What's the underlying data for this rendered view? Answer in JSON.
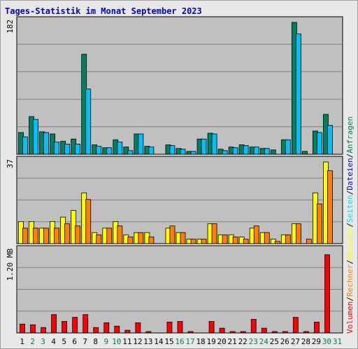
{
  "title": "Tages-Statistik im Monat September 2023",
  "colors": {
    "panel_bg": "#c0c0c0",
    "grid": "#808080",
    "anfragen": "#008060",
    "dateien": "#00c0ff",
    "seiten": "#00e0ff",
    "besuche": "#ffff00",
    "rechner": "#ff8000",
    "volumen": "#ff0000",
    "weekday": "#000000",
    "weekend": "#00805c"
  },
  "chart_data": {
    "type": "bar",
    "categories": [
      "1",
      "2",
      "3",
      "4",
      "5",
      "6",
      "7",
      "8",
      "9",
      "10",
      "11",
      "12",
      "13",
      "14",
      "15",
      "16",
      "17",
      "18",
      "19",
      "20",
      "21",
      "22",
      "23",
      "24",
      "25",
      "26",
      "27",
      "28",
      "29",
      "30",
      "31"
    ],
    "weekend_days": [
      "2",
      "3",
      "9",
      "10",
      "16",
      "17",
      "23",
      "24",
      "30",
      "31"
    ],
    "panels": [
      {
        "ylabel": "182",
        "ymax": 182,
        "series": [
          {
            "key": "anfragen",
            "values": [
              30,
              52,
              31,
              28,
              18,
              21,
              138,
              13,
              9,
              20,
              10,
              28,
              11,
              0,
              13,
              8,
              4,
              21,
              29,
              7,
              10,
              13,
              10,
              8,
              6,
              20,
              182,
              4,
              32,
              55,
              0
            ]
          },
          {
            "key": "dateien",
            "values": [
              24,
              48,
              30,
              17,
              14,
              14,
              90,
              11,
              9,
              17,
              5,
              28,
              10,
              0,
              12,
              7,
              4,
              21,
              28,
              5,
              9,
              12,
              10,
              8,
              0,
              20,
              166,
              0,
              30,
              40,
              0
            ]
          }
        ]
      },
      {
        "ylabel": "37",
        "ymax": 37,
        "series": [
          {
            "key": "besuche",
            "values": [
              10,
              10,
              7,
              10,
              12,
              15,
              23,
              5,
              7,
              10,
              4,
              5,
              5,
              0,
              7,
              5,
              2,
              2,
              9,
              4,
              4,
              3,
              7,
              5,
              2,
              4,
              9,
              0,
              23,
              37,
              0
            ]
          },
          {
            "key": "rechner",
            "values": [
              7,
              7,
              7,
              7,
              9,
              8,
              20,
              4,
              7,
              8,
              3,
              5,
              3,
              0,
              8,
              5,
              2,
              2,
              9,
              4,
              3,
              2,
              8,
              5,
              1,
              4,
              9,
              2,
              18,
              33,
              0
            ]
          }
        ]
      },
      {
        "ylabel": "1.20 MB",
        "ymax": 1.2,
        "series": [
          {
            "key": "volumen",
            "values": [
              0.13,
              0.12,
              0.08,
              0.27,
              0.17,
              0.23,
              0.27,
              0.08,
              0.15,
              0.1,
              0.04,
              0.15,
              0.01,
              0,
              0.16,
              0.17,
              0.01,
              0,
              0.17,
              0.07,
              0.01,
              0.01,
              0.2,
              0.07,
              0.01,
              0.01,
              0.23,
              0.01,
              0.16,
              1.15,
              0
            ]
          }
        ]
      }
    ],
    "legend": {
      "panel1": [
        "Anfragen",
        "Dateien"
      ],
      "panel2": [
        "Seiten",
        "Besuche"
      ],
      "panel3": [
        "Rechner",
        "Volumen"
      ],
      "separator": "/"
    }
  }
}
